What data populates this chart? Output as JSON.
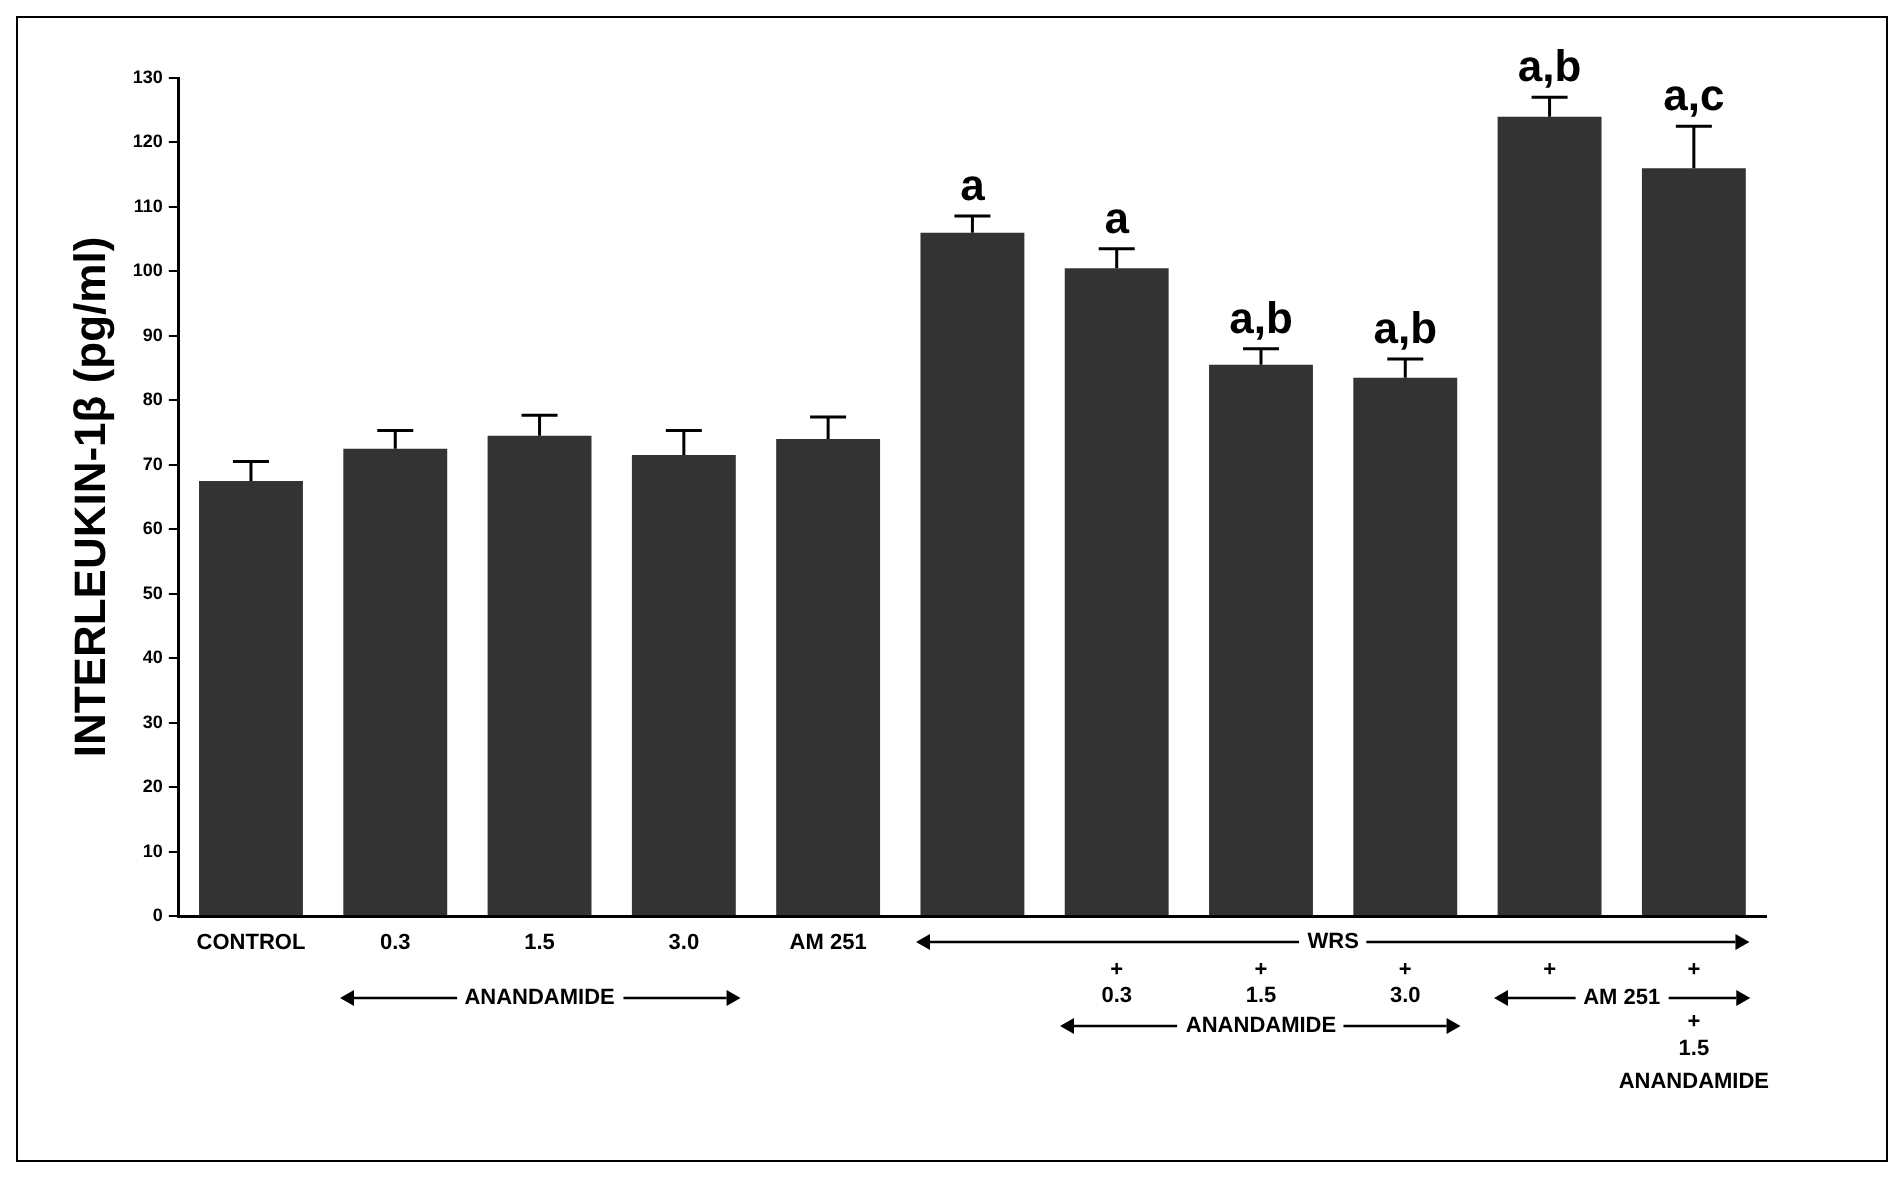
{
  "chart_data": {
    "type": "bar",
    "ylabel": "INTERLEUKIN-1β (pg/ml)",
    "categories": [
      "CONTROL",
      "0.3",
      "1.5",
      "3.0",
      "AM 251",
      null,
      "\n+\n0.3",
      "\n+\n1.5",
      "\n+\n3.0",
      "\n+",
      "\n+\n\n+\n1.5"
    ],
    "values": [
      67.5,
      72.5,
      74.5,
      71.5,
      74,
      106,
      100.5,
      85.5,
      83.5,
      124,
      116
    ],
    "errors": [
      3,
      2.8,
      3.2,
      3.8,
      3.4,
      2.6,
      3,
      2.5,
      2.9,
      3,
      6.5
    ],
    "value_labels": [
      null,
      null,
      null,
      null,
      null,
      "a",
      "a",
      "a,b",
      "a,b",
      "a,b",
      "a,c"
    ],
    "color": "#333333",
    "ylim": [
      0,
      130
    ],
    "yticks": [
      0,
      10,
      20,
      30,
      40,
      50,
      60,
      70,
      80,
      90,
      100,
      110,
      120,
      130
    ],
    "annotations": [
      "ANANDAMIDE",
      "WRS",
      "ANANDAMIDE",
      "AM 251",
      "ANANDAMIDE"
    ],
    "grid": false,
    "legend": false
  }
}
